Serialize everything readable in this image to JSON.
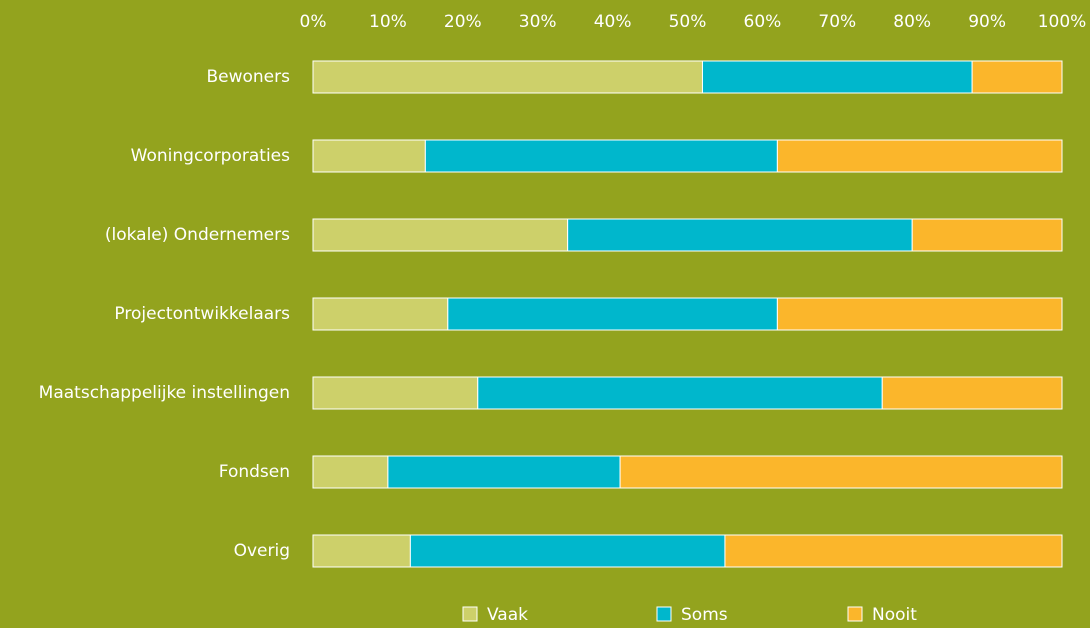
{
  "chart_data": {
    "type": "stacked_barh",
    "categories": [
      "Bewoners",
      "Woningcorporaties",
      "(lokale) Ondernemers",
      "Projectontwikkelaars",
      "Maatschappelijke instellingen",
      "Fondsen",
      "Overig"
    ],
    "series": [
      {
        "name": "Vaak",
        "color": "#cdd06a",
        "values": [
          52,
          15,
          34,
          18,
          22,
          10,
          13
        ]
      },
      {
        "name": "Soms",
        "color": "#00b7cc",
        "values": [
          36,
          47,
          46,
          44,
          54,
          31,
          42
        ]
      },
      {
        "name": "Nooit",
        "color": "#fbb62b",
        "values": [
          12,
          38,
          20,
          38,
          24,
          59,
          45
        ]
      }
    ],
    "xlim": [
      0,
      100
    ],
    "xticks": [
      {
        "value": 0,
        "label": "0%"
      },
      {
        "value": 10,
        "label": "10%"
      },
      {
        "value": 20,
        "label": "20%"
      },
      {
        "value": 30,
        "label": "30%"
      },
      {
        "value": 40,
        "label": "40%"
      },
      {
        "value": 50,
        "label": "50%"
      },
      {
        "value": 60,
        "label": "60%"
      },
      {
        "value": 70,
        "label": "70%"
      },
      {
        "value": 80,
        "label": "80%"
      },
      {
        "value": 90,
        "label": "90%"
      },
      {
        "value": 100,
        "label": "100%"
      }
    ],
    "legend": "bottom",
    "grid": false
  }
}
